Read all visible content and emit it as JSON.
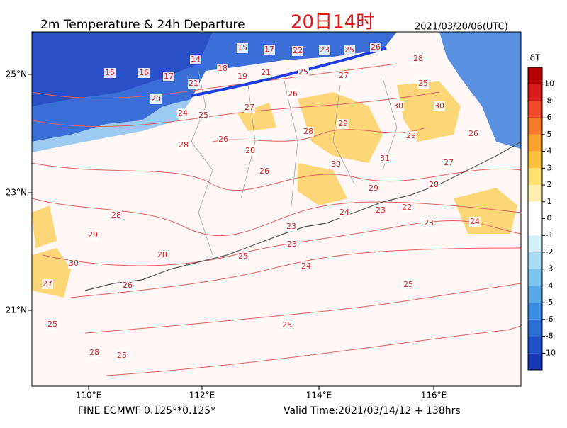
{
  "header": {
    "title": "2m Temperature & 24h Departure",
    "local_time": "20日14时",
    "init_time": "2021/03/20/06(UTC)"
  },
  "map": {
    "lat_labels": [
      "25°N",
      "23°N",
      "21°N"
    ],
    "lon_labels": [
      "110°E",
      "112°E",
      "114°E",
      "116°E"
    ],
    "contour_labels": [
      "15",
      "16",
      "17",
      "14",
      "15",
      "17",
      "22",
      "23",
      "25",
      "26",
      "18",
      "19",
      "21",
      "21",
      "20",
      "24",
      "25",
      "27",
      "26",
      "25",
      "27",
      "28",
      "25",
      "30",
      "30",
      "28",
      "29",
      "29",
      "26",
      "28",
      "26",
      "28",
      "26",
      "30",
      "31",
      "27",
      "29",
      "28",
      "23",
      "22",
      "23",
      "24",
      "24",
      "23",
      "28",
      "29",
      "28",
      "25",
      "30",
      "27",
      "26",
      "24",
      "25",
      "25",
      "25",
      "28",
      "25",
      "23"
    ]
  },
  "colorbar": {
    "label": "δT",
    "ticks": [
      "10",
      "8",
      "6",
      "5",
      "4",
      "3",
      "2",
      "1",
      "0",
      "-1",
      "-2",
      "-3",
      "-4",
      "-5",
      "-6",
      "-8",
      "-10"
    ],
    "colors": [
      "#b40000",
      "#d81c1c",
      "#ee4a2a",
      "#f57a2a",
      "#f9a030",
      "#fbc040",
      "#fde070",
      "#fff0b0",
      "#ffffff",
      "#ffffff",
      "#d4f0fa",
      "#a8dcf4",
      "#7cc4ee",
      "#58a8e6",
      "#3a8ce0",
      "#2a6ed4",
      "#1e50c8",
      "#1638b4"
    ]
  },
  "footer": {
    "grid": "FINE ECMWF 0.125°*0.125°",
    "valid": "Valid Time:2021/03/14/12 + 138hrs"
  }
}
